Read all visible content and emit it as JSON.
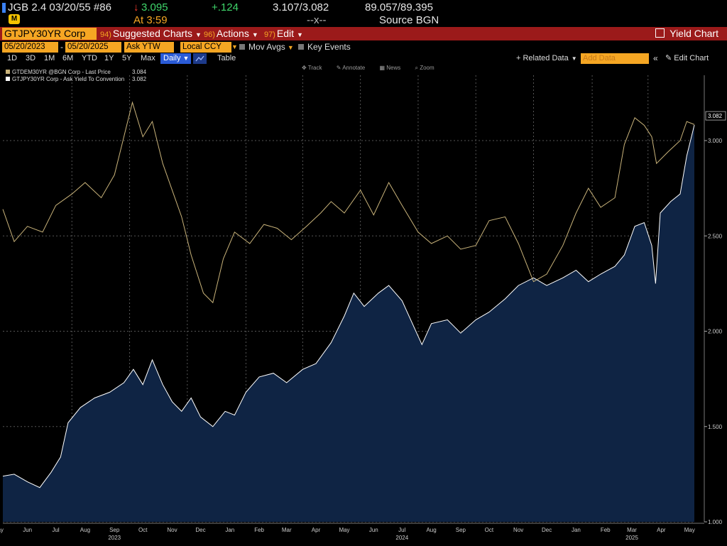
{
  "quote": {
    "security": "JGB 2.4 03/20/55 #86",
    "last_arrow": "↓",
    "last": "3.095",
    "change": "+.124",
    "bid_ask_yield": "3.107/3.082",
    "bid_ask_price": "89.057/89.395",
    "time": "At 3:59",
    "dashes": "--x--",
    "source": "Source BGN"
  },
  "command_bar": {
    "ticker": "GTJPY30YR Corp",
    "menus": [
      {
        "num": "94)",
        "label": "Suggested Charts"
      },
      {
        "num": "96)",
        "label": "Actions"
      },
      {
        "num": "97)",
        "label": "Edit"
      }
    ],
    "title": "Yield Chart"
  },
  "options": {
    "start_date": "05/20/2023",
    "end_date": "05/20/2025",
    "field": "Ask YTW",
    "currency": "Local CCY",
    "mov_avgs": "Mov Avgs",
    "key_events": "Key Events"
  },
  "ranges": [
    "1D",
    "3D",
    "1M",
    "6M",
    "YTD",
    "1Y",
    "5Y",
    "Max"
  ],
  "period": "Daily",
  "table_label": "Table",
  "related_data": "Related Data",
  "add_data_placeholder": "Add Data",
  "edit_chart": "Edit Chart",
  "tools": [
    "Track",
    "Annotate",
    "News",
    "Zoom"
  ],
  "colors": {
    "background": "#000000",
    "german_line": "#c9b37a",
    "japan_line": "#ffffff",
    "japan_fill": "#0f2444",
    "grid": "#555555",
    "accent_orange": "#f5a623",
    "command_bar": "#9b1a1a"
  },
  "chart_data": {
    "type": "area",
    "y_scale": "linear",
    "ylim": [
      1.0,
      3.3
    ],
    "y_ticks": [
      "1.000",
      "1.500",
      "2.000",
      "2.500",
      "3.000"
    ],
    "y_tick_values": [
      1.0,
      1.5,
      2.0,
      2.5,
      3.0
    ],
    "xlim": [
      "2023-05-20",
      "2025-05-20"
    ],
    "x_month_labels": [
      {
        "date": "2023-05-15",
        "label": "May"
      },
      {
        "date": "2023-06-15",
        "label": "Jun"
      },
      {
        "date": "2023-07-15",
        "label": "Jul"
      },
      {
        "date": "2023-08-15",
        "label": "Aug"
      },
      {
        "date": "2023-09-15",
        "label": "Sep"
      },
      {
        "date": "2023-10-15",
        "label": "Oct"
      },
      {
        "date": "2023-11-15",
        "label": "Nov"
      },
      {
        "date": "2023-12-15",
        "label": "Dec"
      },
      {
        "date": "2024-01-15",
        "label": "Jan"
      },
      {
        "date": "2024-02-15",
        "label": "Feb"
      },
      {
        "date": "2024-03-15",
        "label": "Mar"
      },
      {
        "date": "2024-04-15",
        "label": "Apr"
      },
      {
        "date": "2024-05-15",
        "label": "May"
      },
      {
        "date": "2024-06-15",
        "label": "Jun"
      },
      {
        "date": "2024-07-15",
        "label": "Jul"
      },
      {
        "date": "2024-08-15",
        "label": "Aug"
      },
      {
        "date": "2024-09-15",
        "label": "Sep"
      },
      {
        "date": "2024-10-15",
        "label": "Oct"
      },
      {
        "date": "2024-11-15",
        "label": "Nov"
      },
      {
        "date": "2024-12-15",
        "label": "Dec"
      },
      {
        "date": "2025-01-15",
        "label": "Jan"
      },
      {
        "date": "2025-02-15",
        "label": "Feb"
      },
      {
        "date": "2025-03-15",
        "label": "Mar"
      },
      {
        "date": "2025-04-15",
        "label": "Apr"
      },
      {
        "date": "2025-05-15",
        "label": "May"
      }
    ],
    "x_year_labels": [
      {
        "date": "2023-09-15",
        "label": "2023"
      },
      {
        "date": "2024-07-15",
        "label": "2024"
      },
      {
        "date": "2025-03-15",
        "label": "2025"
      }
    ],
    "x_gridlines": [
      "2023-08-01",
      "2023-10-01",
      "2023-12-01",
      "2024-02-01",
      "2024-04-01",
      "2024-06-01",
      "2024-08-01",
      "2024-10-01",
      "2024-12-01",
      "2025-02-01",
      "2025-04-01"
    ],
    "current_value_label": "3.082",
    "series": [
      {
        "name": "GTDEM30YR @BGN Corp - Last Price",
        "last": "3.084",
        "style": "line",
        "points": [
          [
            "2023-05-20",
            2.64
          ],
          [
            "2023-06-01",
            2.47
          ],
          [
            "2023-06-15",
            2.55
          ],
          [
            "2023-07-01",
            2.52
          ],
          [
            "2023-07-15",
            2.66
          ],
          [
            "2023-08-01",
            2.72
          ],
          [
            "2023-08-15",
            2.78
          ],
          [
            "2023-09-01",
            2.7
          ],
          [
            "2023-09-15",
            2.82
          ],
          [
            "2023-10-04",
            3.2
          ],
          [
            "2023-10-15",
            3.02
          ],
          [
            "2023-10-25",
            3.1
          ],
          [
            "2023-11-05",
            2.88
          ],
          [
            "2023-11-15",
            2.74
          ],
          [
            "2023-11-25",
            2.6
          ],
          [
            "2023-12-05",
            2.4
          ],
          [
            "2023-12-18",
            2.2
          ],
          [
            "2023-12-28",
            2.15
          ],
          [
            "2024-01-08",
            2.38
          ],
          [
            "2024-01-20",
            2.52
          ],
          [
            "2024-02-05",
            2.46
          ],
          [
            "2024-02-20",
            2.56
          ],
          [
            "2024-03-05",
            2.54
          ],
          [
            "2024-03-20",
            2.48
          ],
          [
            "2024-04-05",
            2.55
          ],
          [
            "2024-04-20",
            2.62
          ],
          [
            "2024-05-01",
            2.68
          ],
          [
            "2024-05-15",
            2.62
          ],
          [
            "2024-06-01",
            2.74
          ],
          [
            "2024-06-15",
            2.61
          ],
          [
            "2024-07-01",
            2.78
          ],
          [
            "2024-07-15",
            2.66
          ],
          [
            "2024-08-01",
            2.52
          ],
          [
            "2024-08-15",
            2.46
          ],
          [
            "2024-09-01",
            2.5
          ],
          [
            "2024-09-15",
            2.43
          ],
          [
            "2024-10-01",
            2.45
          ],
          [
            "2024-10-15",
            2.58
          ],
          [
            "2024-11-01",
            2.6
          ],
          [
            "2024-11-15",
            2.46
          ],
          [
            "2024-12-01",
            2.26
          ],
          [
            "2024-12-15",
            2.3
          ],
          [
            "2025-01-01",
            2.45
          ],
          [
            "2025-01-15",
            2.62
          ],
          [
            "2025-01-28",
            2.75
          ],
          [
            "2025-02-10",
            2.65
          ],
          [
            "2025-02-25",
            2.7
          ],
          [
            "2025-03-07",
            2.98
          ],
          [
            "2025-03-18",
            3.12
          ],
          [
            "2025-03-28",
            3.08
          ],
          [
            "2025-04-05",
            3.02
          ],
          [
            "2025-04-10",
            2.88
          ],
          [
            "2025-04-22",
            2.94
          ],
          [
            "2025-05-05",
            3.0
          ],
          [
            "2025-05-12",
            3.1
          ],
          [
            "2025-05-20",
            3.084
          ]
        ]
      },
      {
        "name": "GTJPY30YR Corp - Ask Yield To Convention",
        "last": "3.082",
        "style": "area",
        "points": [
          [
            "2023-05-20",
            1.24
          ],
          [
            "2023-06-01",
            1.25
          ],
          [
            "2023-06-15",
            1.21
          ],
          [
            "2023-06-28",
            1.18
          ],
          [
            "2023-07-10",
            1.26
          ],
          [
            "2023-07-20",
            1.34
          ],
          [
            "2023-07-28",
            1.52
          ],
          [
            "2023-08-10",
            1.6
          ],
          [
            "2023-08-25",
            1.65
          ],
          [
            "2023-09-10",
            1.68
          ],
          [
            "2023-09-25",
            1.73
          ],
          [
            "2023-10-05",
            1.8
          ],
          [
            "2023-10-15",
            1.72
          ],
          [
            "2023-10-25",
            1.85
          ],
          [
            "2023-11-05",
            1.72
          ],
          [
            "2023-11-15",
            1.63
          ],
          [
            "2023-11-25",
            1.58
          ],
          [
            "2023-12-05",
            1.65
          ],
          [
            "2023-12-15",
            1.55
          ],
          [
            "2023-12-28",
            1.5
          ],
          [
            "2024-01-10",
            1.58
          ],
          [
            "2024-01-20",
            1.56
          ],
          [
            "2024-02-01",
            1.68
          ],
          [
            "2024-02-15",
            1.76
          ],
          [
            "2024-03-01",
            1.78
          ],
          [
            "2024-03-15",
            1.73
          ],
          [
            "2024-04-01",
            1.8
          ],
          [
            "2024-04-15",
            1.83
          ],
          [
            "2024-05-01",
            1.94
          ],
          [
            "2024-05-15",
            2.08
          ],
          [
            "2024-05-25",
            2.2
          ],
          [
            "2024-06-05",
            2.13
          ],
          [
            "2024-06-20",
            2.2
          ],
          [
            "2024-07-01",
            2.24
          ],
          [
            "2024-07-15",
            2.16
          ],
          [
            "2024-08-05",
            1.93
          ],
          [
            "2024-08-15",
            2.04
          ],
          [
            "2024-09-01",
            2.06
          ],
          [
            "2024-09-15",
            1.99
          ],
          [
            "2024-10-01",
            2.06
          ],
          [
            "2024-10-15",
            2.1
          ],
          [
            "2024-11-01",
            2.17
          ],
          [
            "2024-11-15",
            2.24
          ],
          [
            "2024-12-01",
            2.28
          ],
          [
            "2024-12-15",
            2.24
          ],
          [
            "2025-01-01",
            2.28
          ],
          [
            "2025-01-15",
            2.32
          ],
          [
            "2025-01-28",
            2.26
          ],
          [
            "2025-02-10",
            2.3
          ],
          [
            "2025-02-25",
            2.34
          ],
          [
            "2025-03-07",
            2.4
          ],
          [
            "2025-03-18",
            2.55
          ],
          [
            "2025-03-28",
            2.57
          ],
          [
            "2025-04-05",
            2.45
          ],
          [
            "2025-04-09",
            2.25
          ],
          [
            "2025-04-14",
            2.62
          ],
          [
            "2025-04-25",
            2.68
          ],
          [
            "2025-05-05",
            2.72
          ],
          [
            "2025-05-12",
            2.92
          ],
          [
            "2025-05-20",
            3.082
          ]
        ]
      }
    ]
  }
}
